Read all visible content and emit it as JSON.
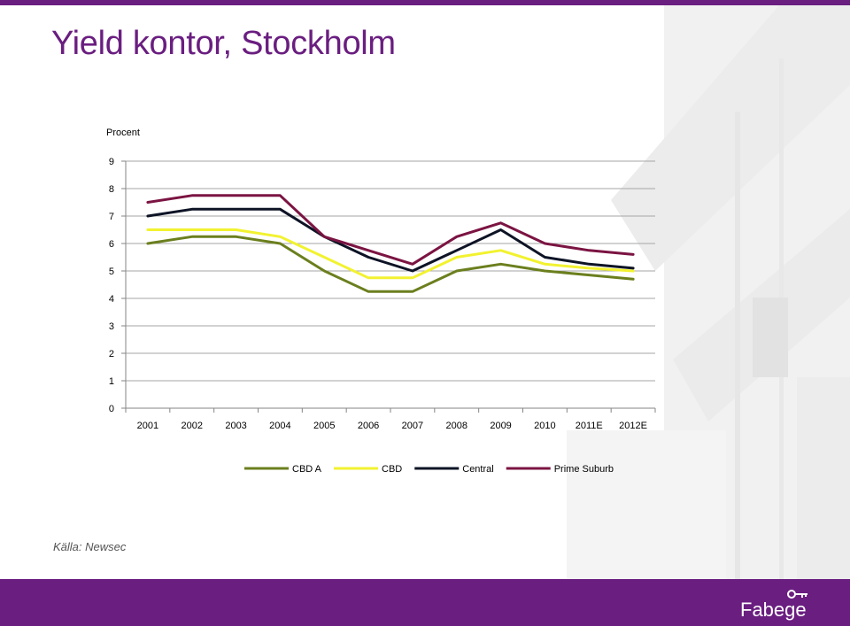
{
  "slide": {
    "title": "Yield kontor, Stockholm",
    "source": "Källa: Newsec",
    "brand": "Fabege",
    "accent_color": "#6a1e80"
  },
  "chart_data": {
    "type": "line",
    "ylabel": "Procent",
    "ylim": [
      0,
      9
    ],
    "yticks": [
      "0",
      "1",
      "2",
      "3",
      "4",
      "5",
      "6",
      "7",
      "8",
      "9"
    ],
    "categories": [
      "2001",
      "2002",
      "2003",
      "2004",
      "2005",
      "2006",
      "2007",
      "2008",
      "2009",
      "2010",
      "2011E",
      "2012E"
    ],
    "grid": true,
    "legend_position": "bottom",
    "series": [
      {
        "name": "CBD A",
        "color": "#6b7f1e",
        "values": [
          6.0,
          6.25,
          6.25,
          6.0,
          5.0,
          4.25,
          4.25,
          5.0,
          5.25,
          5.0,
          4.85,
          4.7
        ]
      },
      {
        "name": "CBD",
        "color": "#f2f230",
        "values": [
          6.5,
          6.5,
          6.5,
          6.25,
          5.5,
          4.75,
          4.75,
          5.5,
          5.75,
          5.25,
          5.1,
          5.0
        ]
      },
      {
        "name": "Central",
        "color": "#0e1426",
        "values": [
          7.0,
          7.25,
          7.25,
          7.25,
          6.25,
          5.5,
          5.0,
          5.75,
          6.5,
          5.5,
          5.25,
          5.1
        ]
      },
      {
        "name": "Prime Suburb",
        "color": "#7b1442",
        "values": [
          7.5,
          7.75,
          7.75,
          7.75,
          6.25,
          5.75,
          5.25,
          6.25,
          6.75,
          6.0,
          5.75,
          5.6
        ]
      }
    ]
  }
}
